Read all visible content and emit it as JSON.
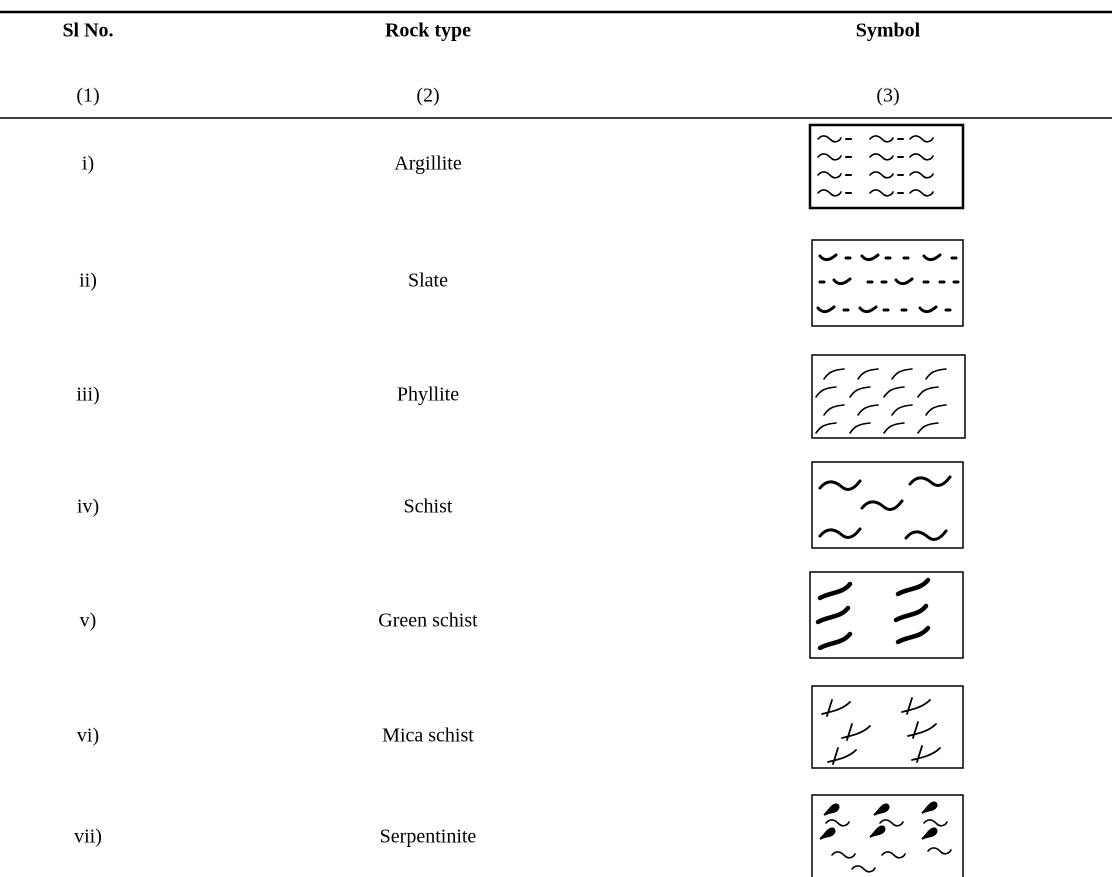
{
  "table": {
    "headers": [
      "Sl No.",
      "Rock type",
      "Symbol"
    ],
    "numbering": [
      "(1)",
      "(2)",
      "(3)"
    ],
    "rows": [
      [
        "i)",
        "Argillite"
      ],
      [
        "ii)",
        "Slate"
      ],
      [
        "iii)",
        "Phyllite"
      ],
      [
        "iv)",
        "Schist"
      ],
      [
        "v)",
        "Green schist"
      ],
      [
        "vi)",
        "Mica schist"
      ],
      [
        "vii)",
        "Serpentinite"
      ]
    ]
  }
}
